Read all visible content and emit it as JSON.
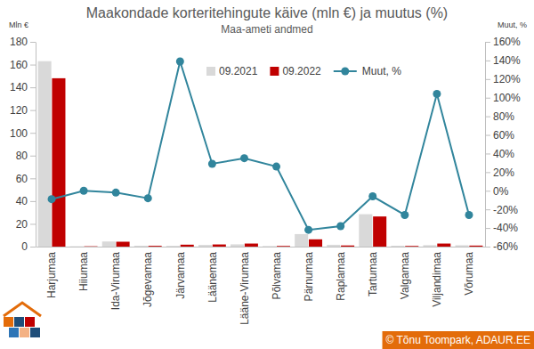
{
  "chart_data": {
    "type": "bar",
    "title": "Maakondade korteritehingute käive (mln €) ja muutus (%)",
    "subtitle": "Maa-ameti andmed",
    "y_label": "Mln €",
    "y2_label": "Muut, %",
    "annotations": [
      "© Tõnu Toompark, ADAUR.EE"
    ],
    "categories": [
      "Harjumaa",
      "Hiiumaa",
      "Ida-Virumaa",
      "Jõgevamaa",
      "Järvamaa",
      "Läänemaa",
      "Lääne-Virumaa",
      "Põlvamaa",
      "Pärnumaa",
      "Raplamaa",
      "Tartumaa",
      "Valgamaa",
      "Viljandimaa",
      "Võrumaa"
    ],
    "series": [
      {
        "name": "09.2021",
        "type": "bar",
        "color": "#d9d9d9",
        "values": [
          163,
          0.3,
          4.5,
          0.8,
          0.7,
          1.5,
          2,
          0.5,
          11,
          1.6,
          28.5,
          0.8,
          1.3,
          1.2
        ]
      },
      {
        "name": "09.2022",
        "type": "bar",
        "color": "#c00000",
        "values": [
          148,
          0.3,
          4.3,
          0.7,
          1.7,
          1.9,
          2.7,
          0.6,
          6.4,
          1.0,
          26.5,
          0.6,
          2.7,
          0.9
        ]
      },
      {
        "name": "Muut, %",
        "type": "line",
        "axis": "y2",
        "color": "#31859c",
        "marker": "circle",
        "line_style": "solid",
        "values": [
          -9,
          0,
          -2,
          -8,
          139,
          29,
          35,
          26,
          -42,
          -38,
          -6,
          -26,
          104,
          -26
        ]
      }
    ],
    "ylim": [
      0,
      180
    ],
    "yticks": [
      0,
      20,
      40,
      60,
      80,
      100,
      120,
      140,
      160,
      180
    ],
    "y2lim": [
      -60,
      160
    ],
    "y2ticks": [
      {
        "value": -60,
        "label": "-60%"
      },
      {
        "value": -40,
        "label": "-40%"
      },
      {
        "value": -20,
        "label": "-20%"
      },
      {
        "value": 0,
        "label": "0%"
      },
      {
        "value": 20,
        "label": "20%"
      },
      {
        "value": 40,
        "label": "40%"
      },
      {
        "value": 60,
        "label": "60%"
      },
      {
        "value": 80,
        "label": "80%"
      },
      {
        "value": 100,
        "label": "100%"
      },
      {
        "value": 120,
        "label": "120%"
      },
      {
        "value": 140,
        "label": "140%"
      },
      {
        "value": 160,
        "label": "160%"
      }
    ],
    "grid": false,
    "legend": "top"
  }
}
